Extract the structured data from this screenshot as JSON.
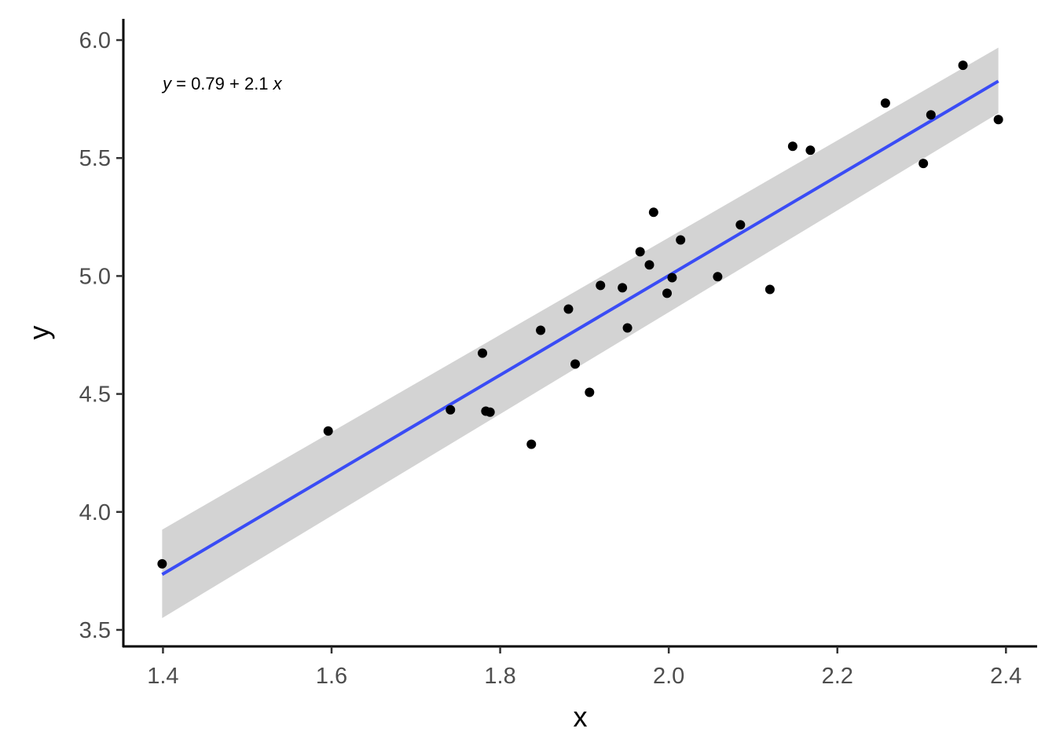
{
  "chart_data": {
    "type": "scatter",
    "xlabel": "x",
    "ylabel": "y",
    "xlim": [
      1.353,
      2.437
    ],
    "ylim": [
      3.43,
      6.09
    ],
    "x_ticks": [
      "1.4",
      "1.6",
      "1.8",
      "2.0",
      "2.2",
      "2.4"
    ],
    "y_ticks": [
      "3.5",
      "4.0",
      "4.5",
      "5.0",
      "5.5",
      "6.0"
    ],
    "grid": false,
    "annotation": {
      "y_symbol": "y",
      "middle": " = 0.79 + 2.1 ",
      "x_symbol": "x"
    },
    "regression": {
      "intercept": 0.79,
      "slope": 2.1,
      "x_range": [
        1.399,
        2.391
      ],
      "line_y": [
        3.735,
        5.826
      ],
      "ci_lower": [
        3.55,
        5.69
      ],
      "ci_upper": [
        3.925,
        5.968
      ],
      "line_color": "#3a4cf5",
      "band_color": "#d3d3d3"
    },
    "points": [
      {
        "x": 1.399,
        "y": 3.78
      },
      {
        "x": 1.596,
        "y": 4.343
      },
      {
        "x": 1.741,
        "y": 4.433
      },
      {
        "x": 1.779,
        "y": 4.673
      },
      {
        "x": 1.783,
        "y": 4.427
      },
      {
        "x": 1.788,
        "y": 4.423
      },
      {
        "x": 1.837,
        "y": 4.287
      },
      {
        "x": 1.848,
        "y": 4.77
      },
      {
        "x": 1.881,
        "y": 4.86
      },
      {
        "x": 1.889,
        "y": 4.627
      },
      {
        "x": 1.906,
        "y": 4.507
      },
      {
        "x": 1.919,
        "y": 4.96
      },
      {
        "x": 1.945,
        "y": 4.95
      },
      {
        "x": 1.951,
        "y": 4.78
      },
      {
        "x": 1.966,
        "y": 5.103
      },
      {
        "x": 1.977,
        "y": 5.047
      },
      {
        "x": 1.982,
        "y": 5.27
      },
      {
        "x": 1.998,
        "y": 4.927
      },
      {
        "x": 2.004,
        "y": 4.993
      },
      {
        "x": 2.014,
        "y": 5.153
      },
      {
        "x": 2.058,
        "y": 4.997
      },
      {
        "x": 2.085,
        "y": 5.217
      },
      {
        "x": 2.12,
        "y": 4.943
      },
      {
        "x": 2.147,
        "y": 5.55
      },
      {
        "x": 2.168,
        "y": 5.533
      },
      {
        "x": 2.257,
        "y": 5.733
      },
      {
        "x": 2.302,
        "y": 5.477
      },
      {
        "x": 2.311,
        "y": 5.683
      },
      {
        "x": 2.349,
        "y": 5.893
      },
      {
        "x": 2.391,
        "y": 5.663
      }
    ]
  }
}
